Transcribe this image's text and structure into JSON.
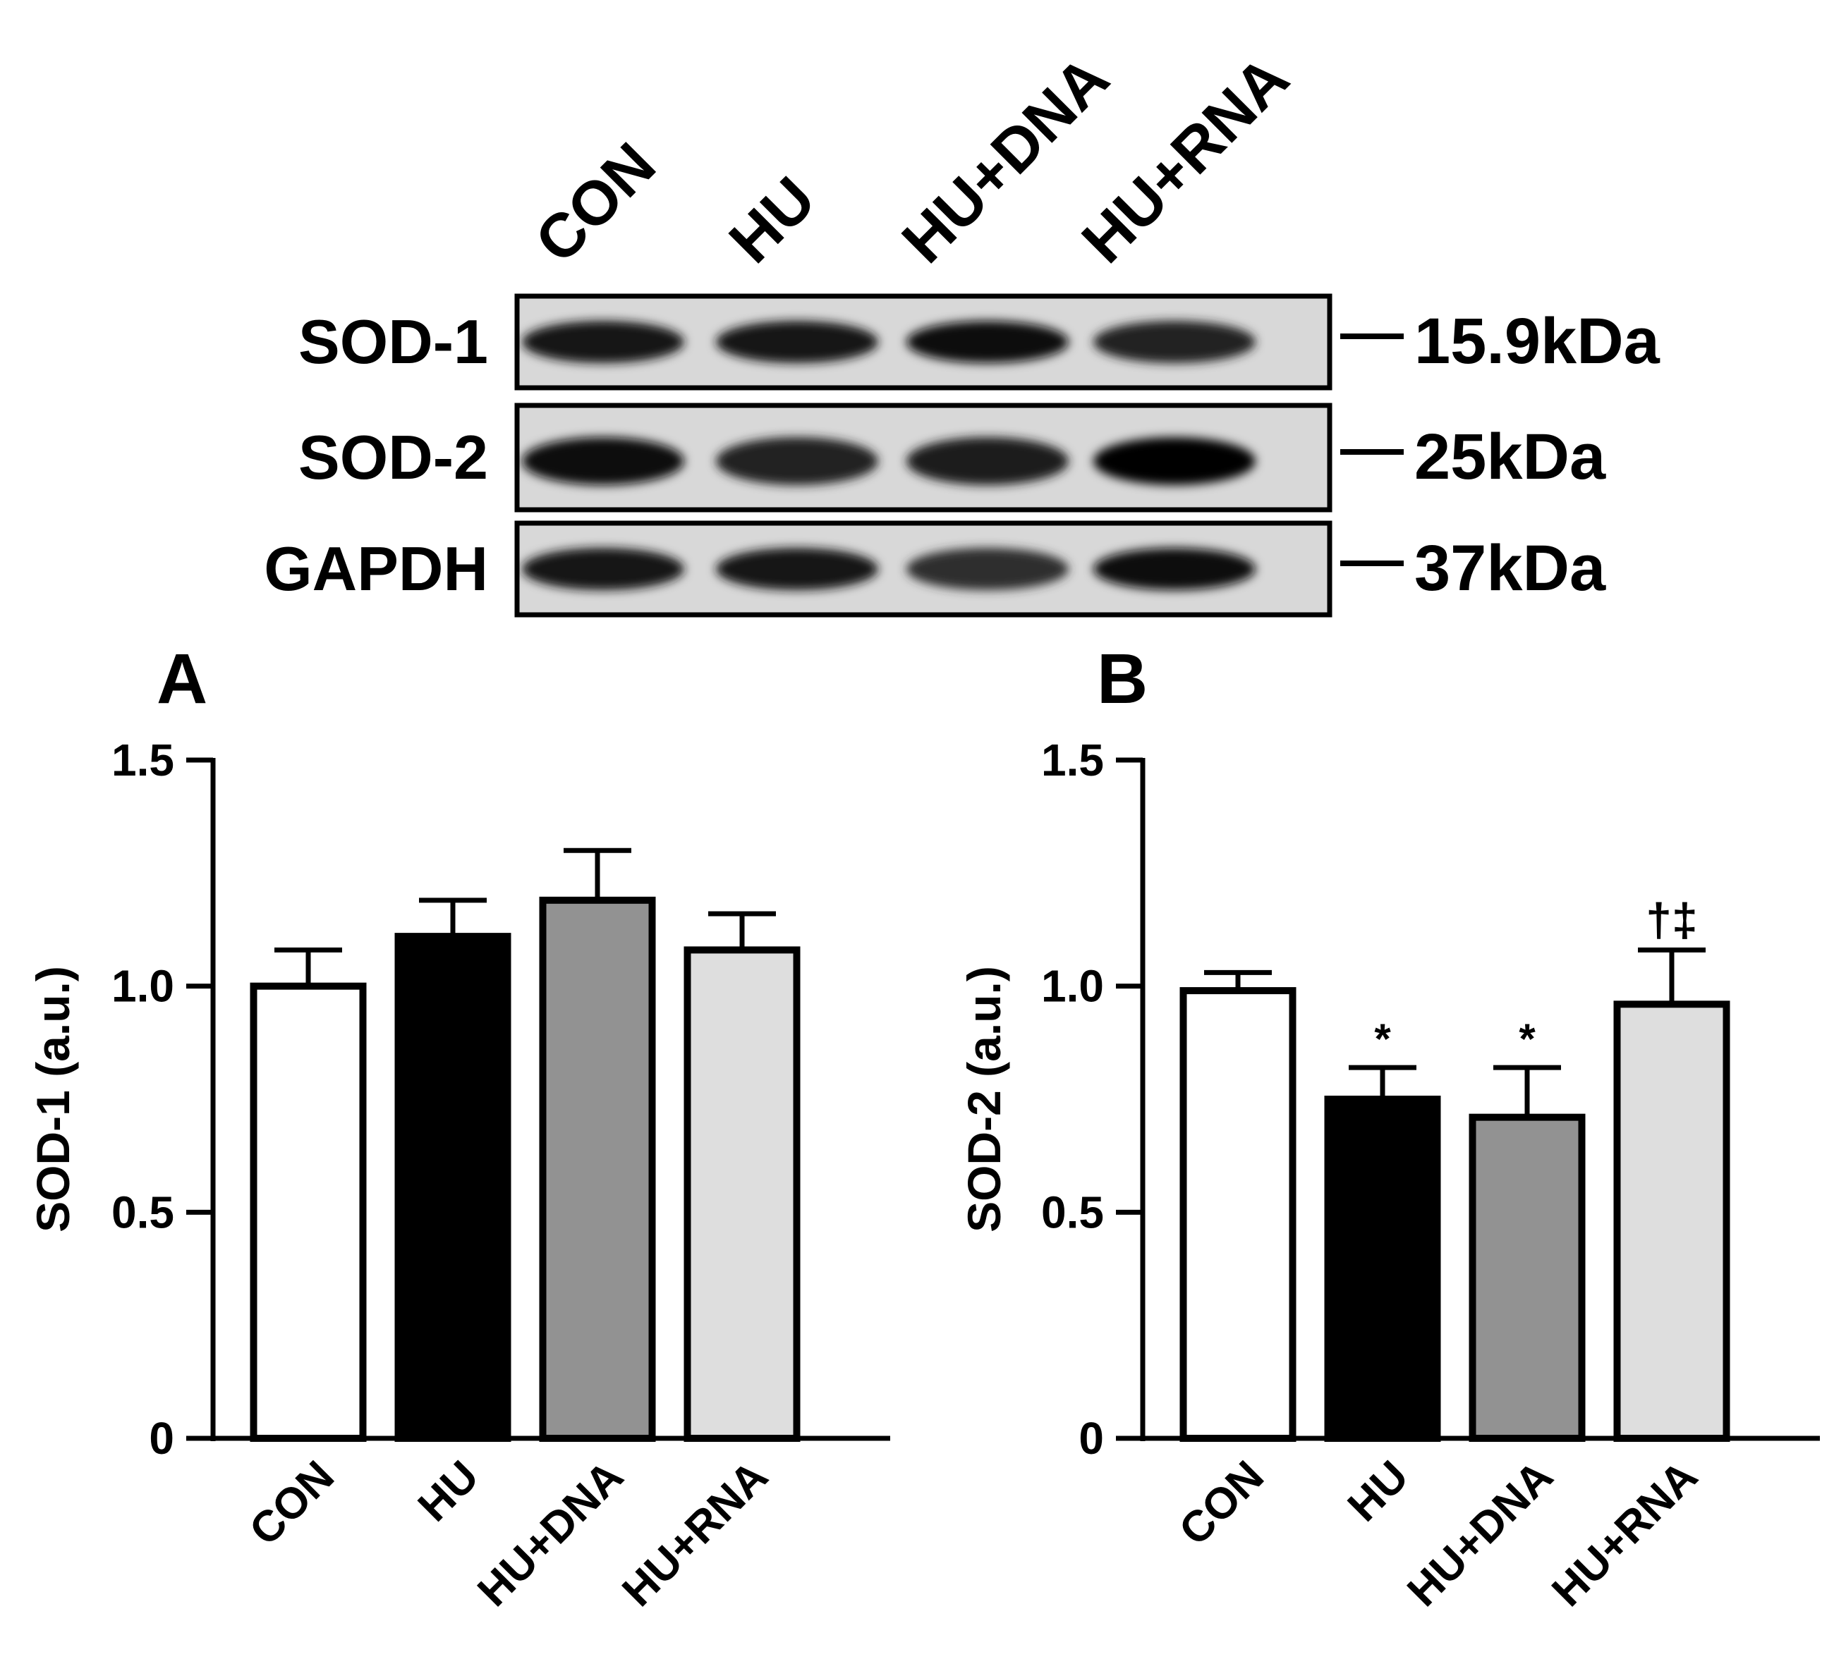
{
  "blot": {
    "lanes": [
      "CON",
      "HU",
      "HU+DNA",
      "HU+RNA"
    ],
    "rows": [
      {
        "label": "SOD-1",
        "mw": "15.9kDa",
        "intensity": [
          0.92,
          0.9,
          0.94,
          0.86
        ]
      },
      {
        "label": "SOD-2",
        "mw": "25kDa",
        "intensity": [
          0.95,
          0.86,
          0.88,
          0.98
        ]
      },
      {
        "label": "GAPDH",
        "mw": "37kDa",
        "intensity": [
          0.92,
          0.9,
          0.82,
          0.95
        ]
      }
    ]
  },
  "chart_data": [
    {
      "type": "bar",
      "panel_label": "A",
      "categories": [
        "CON",
        "HU",
        "HU+DNA",
        "HU+RNA"
      ],
      "values": [
        1.0,
        1.11,
        1.19,
        1.08
      ],
      "errors": [
        0.08,
        0.08,
        0.11,
        0.08
      ],
      "annotations": [
        "",
        "",
        "",
        ""
      ],
      "colors": [
        "#ffffff",
        "#000000",
        "#929292",
        "#dedede"
      ],
      "ylabel": "SOD-1 (a.u.)",
      "ylim": [
        0,
        1.5
      ],
      "yticks": [
        0,
        0.5,
        1.0,
        1.5
      ],
      "ytick_labels": [
        "0",
        "0.5",
        "1.0",
        "1.5"
      ],
      "grid": false
    },
    {
      "type": "bar",
      "panel_label": "B",
      "categories": [
        "CON",
        "HU",
        "HU+DNA",
        "HU+RNA"
      ],
      "values": [
        0.99,
        0.75,
        0.71,
        0.96
      ],
      "errors": [
        0.04,
        0.07,
        0.11,
        0.12
      ],
      "annotations": [
        "",
        "*",
        "*",
        "†‡"
      ],
      "colors": [
        "#ffffff",
        "#000000",
        "#929292",
        "#dedede"
      ],
      "ylabel": "SOD-2 (a.u.)",
      "ylim": [
        0,
        1.5
      ],
      "yticks": [
        0,
        0.5,
        1.0,
        1.5
      ],
      "ytick_labels": [
        "0",
        "0.5",
        "1.0",
        "1.5"
      ],
      "grid": false
    }
  ]
}
